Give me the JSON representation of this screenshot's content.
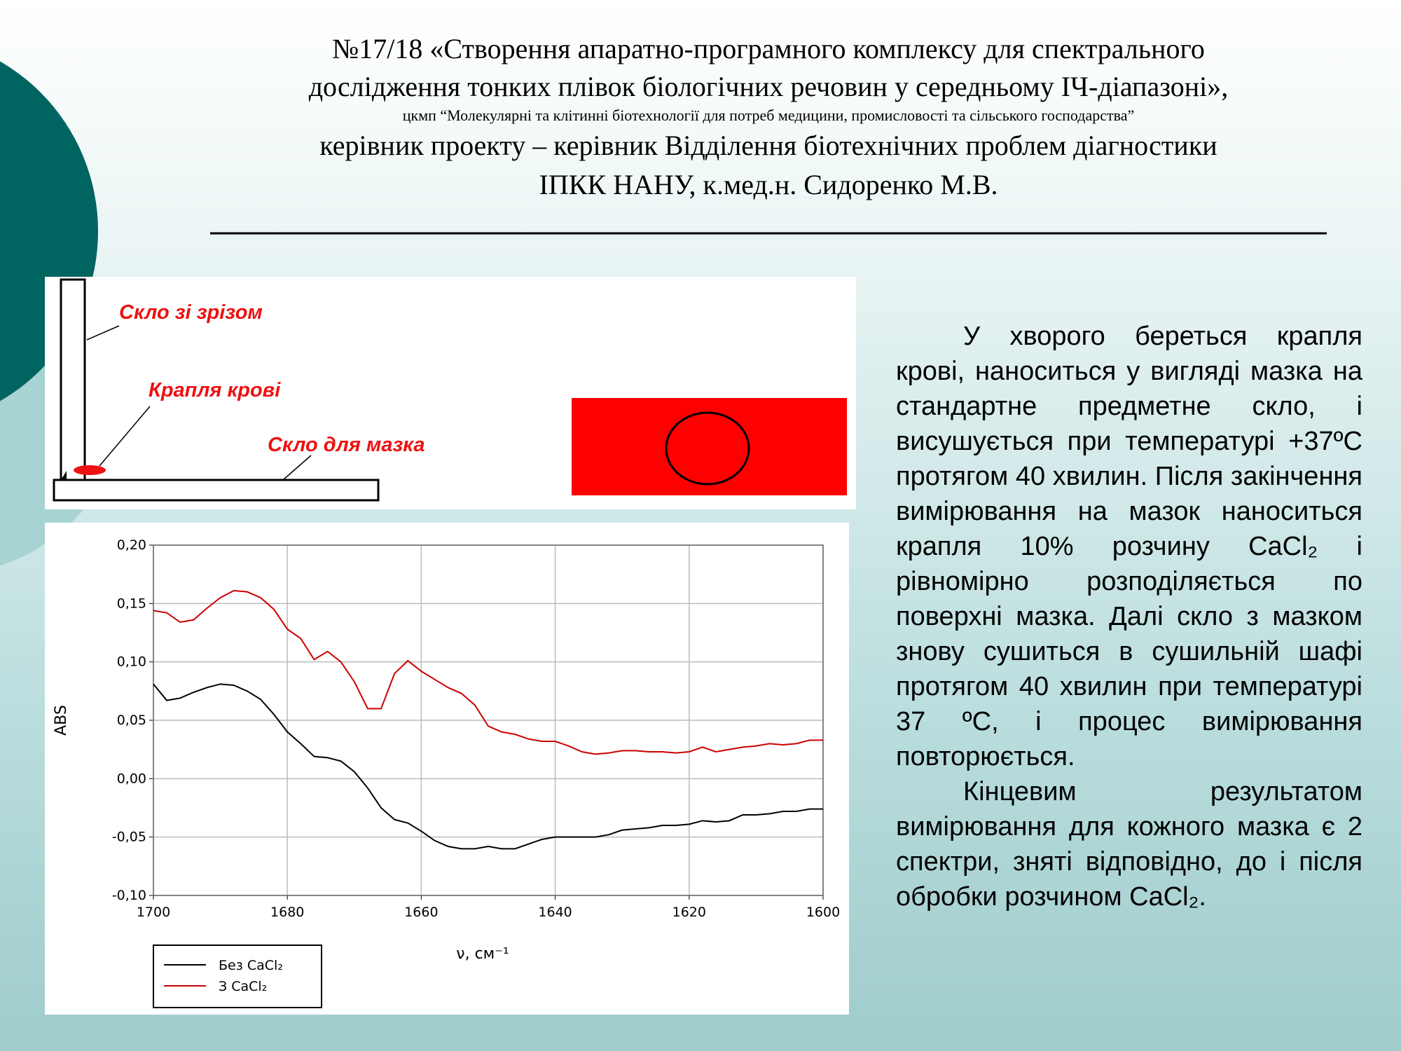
{
  "header": {
    "lines": [
      "№17/18 «Створення апаратно-програмного комплексу для спектрального",
      "дослідження тонких плівок біологічних речовин у середньому ІЧ-діапазоні»,",
      "цкмп “Молекулярні та клітинні біотехнології для потреб медицини, промисловості та сільського господарства”",
      "керівник проекту – керівник Відділення біотехнічних проблем діагностики",
      "ІПКК НАНУ, к.мед.н. Сидоренко М.В."
    ]
  },
  "diagram": {
    "labels": [
      "Скло зі зрізом",
      "Крапля крові",
      "Скло для мазка"
    ]
  },
  "body": {
    "paragraphs": [
      "У хворого береться крапля крові, наноситься у вигляді мазка на стандартне предметне скло, і висушується при температурі +37ºС  протягом 40 хвилин. Після закінчення вимірювання на мазок наноситься крапля 10% розчину CaCl₂ і рівномірно розподіляється по поверхні мазка. Далі скло з мазком знову сушиться в сушильній шафі протягом  40 хвилин при температурі 37 ºС, і процес вимірювання повторюється.",
      "Кінцевим результатом вимірювання для кожного мазка є 2 спектри, зняті відповідно, до і після обробки розчином CaCl₂."
    ]
  },
  "chart_data": {
    "type": "line",
    "x_label": "ν, см⁻¹",
    "y_label": "ABS",
    "x": [
      1700,
      1698,
      1696,
      1694,
      1692,
      1690,
      1688,
      1686,
      1684,
      1682,
      1680,
      1678,
      1676,
      1674,
      1672,
      1670,
      1668,
      1666,
      1664,
      1662,
      1660,
      1658,
      1656,
      1654,
      1652,
      1650,
      1648,
      1646,
      1644,
      1642,
      1640,
      1638,
      1636,
      1634,
      1632,
      1630,
      1628,
      1626,
      1624,
      1622,
      1620,
      1618,
      1616,
      1614,
      1612,
      1610,
      1608,
      1606,
      1604,
      1602,
      1600
    ],
    "series": [
      {
        "name": "Без CaCl₂",
        "color": "#000000",
        "values": [
          0.081,
          0.067,
          0.069,
          0.074,
          0.078,
          0.081,
          0.08,
          0.075,
          0.068,
          0.055,
          0.04,
          0.03,
          0.019,
          0.018,
          0.015,
          0.006,
          -0.008,
          -0.025,
          -0.035,
          -0.038,
          -0.045,
          -0.053,
          -0.058,
          -0.06,
          -0.06,
          -0.058,
          -0.06,
          -0.06,
          -0.056,
          -0.052,
          -0.05,
          -0.05,
          -0.05,
          -0.05,
          -0.048,
          -0.044,
          -0.043,
          -0.042,
          -0.04,
          -0.04,
          -0.039,
          -0.036,
          -0.037,
          -0.036,
          -0.031,
          -0.031,
          -0.03,
          -0.028,
          -0.028,
          -0.026,
          -0.026
        ]
      },
      {
        "name": "З CaCl₂",
        "color": "#cc0000",
        "values": [
          0.144,
          0.142,
          0.134,
          0.136,
          0.146,
          0.155,
          0.161,
          0.16,
          0.155,
          0.145,
          0.128,
          0.12,
          0.102,
          0.109,
          0.1,
          0.083,
          0.06,
          0.06,
          0.09,
          0.101,
          0.092,
          0.085,
          0.078,
          0.073,
          0.063,
          0.045,
          0.04,
          0.038,
          0.034,
          0.032,
          0.032,
          0.028,
          0.023,
          0.021,
          0.022,
          0.024,
          0.024,
          0.023,
          0.023,
          0.022,
          0.023,
          0.027,
          0.023,
          0.025,
          0.027,
          0.028,
          0.03,
          0.029,
          0.03,
          0.033,
          0.033
        ]
      }
    ],
    "xlim": [
      1700,
      1600
    ],
    "xticks": [
      1700,
      1680,
      1660,
      1640,
      1620,
      1600
    ],
    "ylim": [
      -0.1,
      0.2
    ],
    "yticks": [
      {
        "value": -0.1,
        "label": "-0,10"
      },
      {
        "value": -0.05,
        "label": "-0,05"
      },
      {
        "value": 0,
        "label": "0,00"
      },
      {
        "value": 0.05,
        "label": "0,05"
      },
      {
        "value": 0.1,
        "label": "0,10"
      },
      {
        "value": 0.15,
        "label": "0,15"
      },
      {
        "value": 0.2,
        "label": "0,20"
      }
    ],
    "grid": true
  }
}
